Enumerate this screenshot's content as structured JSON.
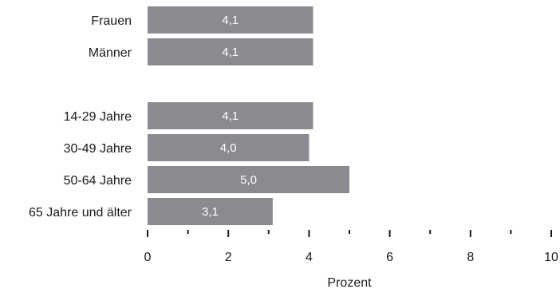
{
  "chart_data": {
    "type": "bar",
    "orientation": "horizontal",
    "categories": [
      "Frauen",
      "Männer",
      "",
      "14-29 Jahre",
      "30-49 Jahre",
      "50-64 Jahre",
      "65 Jahre und älter"
    ],
    "values": [
      4.1,
      4.1,
      null,
      4.1,
      4.0,
      5.0,
      3.1
    ],
    "value_labels": [
      "4,1",
      "4,1",
      "",
      "4,1",
      "4,0",
      "5,0",
      "3,1"
    ],
    "xlabel": "Prozent",
    "xlim": [
      0,
      10
    ],
    "xticks": [
      0,
      2,
      4,
      6,
      8,
      10
    ],
    "xtick_labels": [
      "0",
      "2",
      "4",
      "6",
      "8",
      "10"
    ],
    "minor_tick_step": 1,
    "grid": false,
    "bar_color": "#8a8b91",
    "label_color": "#ffffff"
  }
}
